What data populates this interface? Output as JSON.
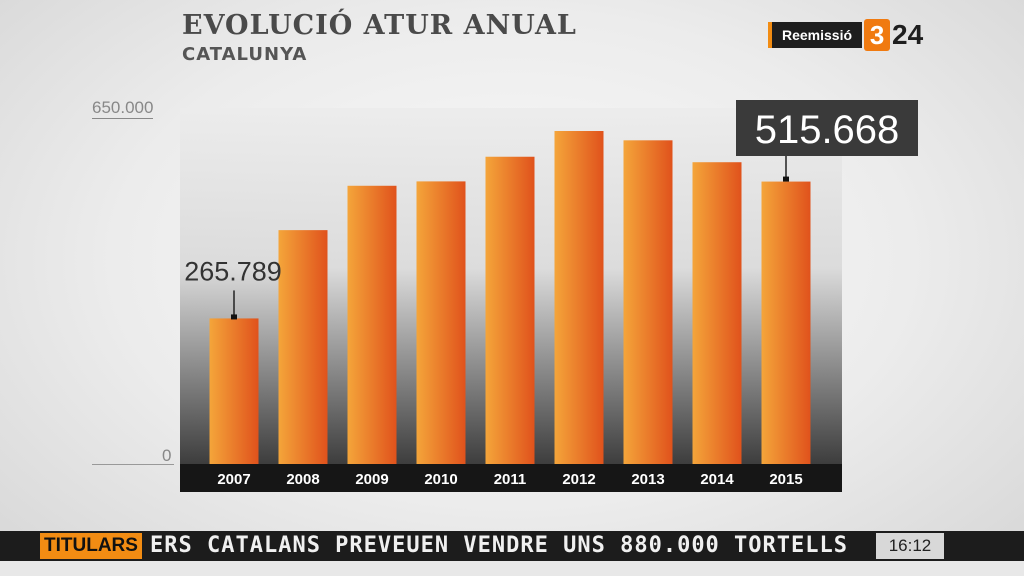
{
  "header": {
    "title": "EVOLUCIÓ ATUR ANUAL",
    "subtitle": "CATALUNYA"
  },
  "brand": {
    "rerun_label": "Reemissió",
    "logo_prefix": "3",
    "logo_suffix": "24",
    "accent_color": "#f28c13"
  },
  "chart_data": {
    "type": "bar",
    "categories": [
      "2007",
      "2008",
      "2009",
      "2010",
      "2011",
      "2012",
      "2013",
      "2014",
      "2015"
    ],
    "values": [
      265789,
      427000,
      508000,
      516000,
      561000,
      608000,
      591000,
      551000,
      515668
    ],
    "ylim": [
      0,
      650000
    ],
    "yticks": [
      "650.000",
      "0"
    ],
    "annotations": [
      {
        "category": "2007",
        "label": "265.789"
      },
      {
        "category": "2015",
        "label": "515.668"
      }
    ],
    "bar_color_light": "#f4a53a",
    "bar_color_dark": "#e0521c",
    "grid": false
  },
  "ticker": {
    "tag": "TITULARS",
    "headline": "ERS CATALANS PREVEUEN VENDRE UNS 880.000 TORTELLS",
    "time": "16:12"
  }
}
